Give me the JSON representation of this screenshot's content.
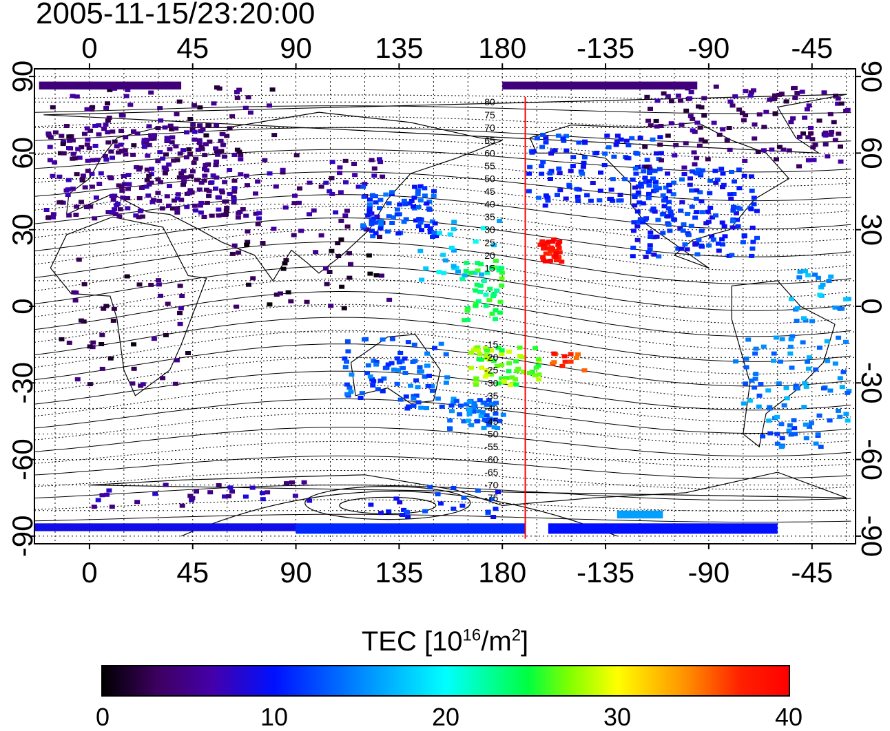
{
  "title": "2005-11-15/23:20:00",
  "map": {
    "x_tick_labels": [
      "0",
      "45",
      "90",
      "135",
      "180",
      "-135",
      "-90",
      "-45"
    ],
    "x_tick_lons": [
      0,
      45,
      90,
      135,
      180,
      225,
      270,
      315
    ],
    "y_tick_labels": [
      "90",
      "60",
      "30",
      "0",
      "-30",
      "-60",
      "-90"
    ],
    "y_tick_lats": [
      90,
      60,
      30,
      0,
      -30,
      -60,
      -90
    ],
    "lon_range": [
      -24,
      334
    ],
    "lat_range": [
      -93,
      93
    ],
    "gridlines": true,
    "terminator_longitude": 190,
    "terminator_color": "#ff0000",
    "contour_labels": [
      "80",
      "75",
      "70",
      "65",
      "60",
      "55",
      "50",
      "45",
      "40",
      "35",
      "30",
      "25",
      "20",
      "15",
      "-15",
      "-20",
      "-25",
      "-30",
      "-35",
      "-40",
      "-45",
      "-50",
      "-55",
      "-60",
      "-65",
      "-70",
      "-75"
    ]
  },
  "colorbar": {
    "label": "TEC  [10",
    "label_exp": "16",
    "label_mid": "/m",
    "label_exp2": "2",
    "label_end": "]",
    "min": 0,
    "max": 40,
    "tick_labels": [
      "0",
      "10",
      "20",
      "30",
      "40"
    ]
  }
}
